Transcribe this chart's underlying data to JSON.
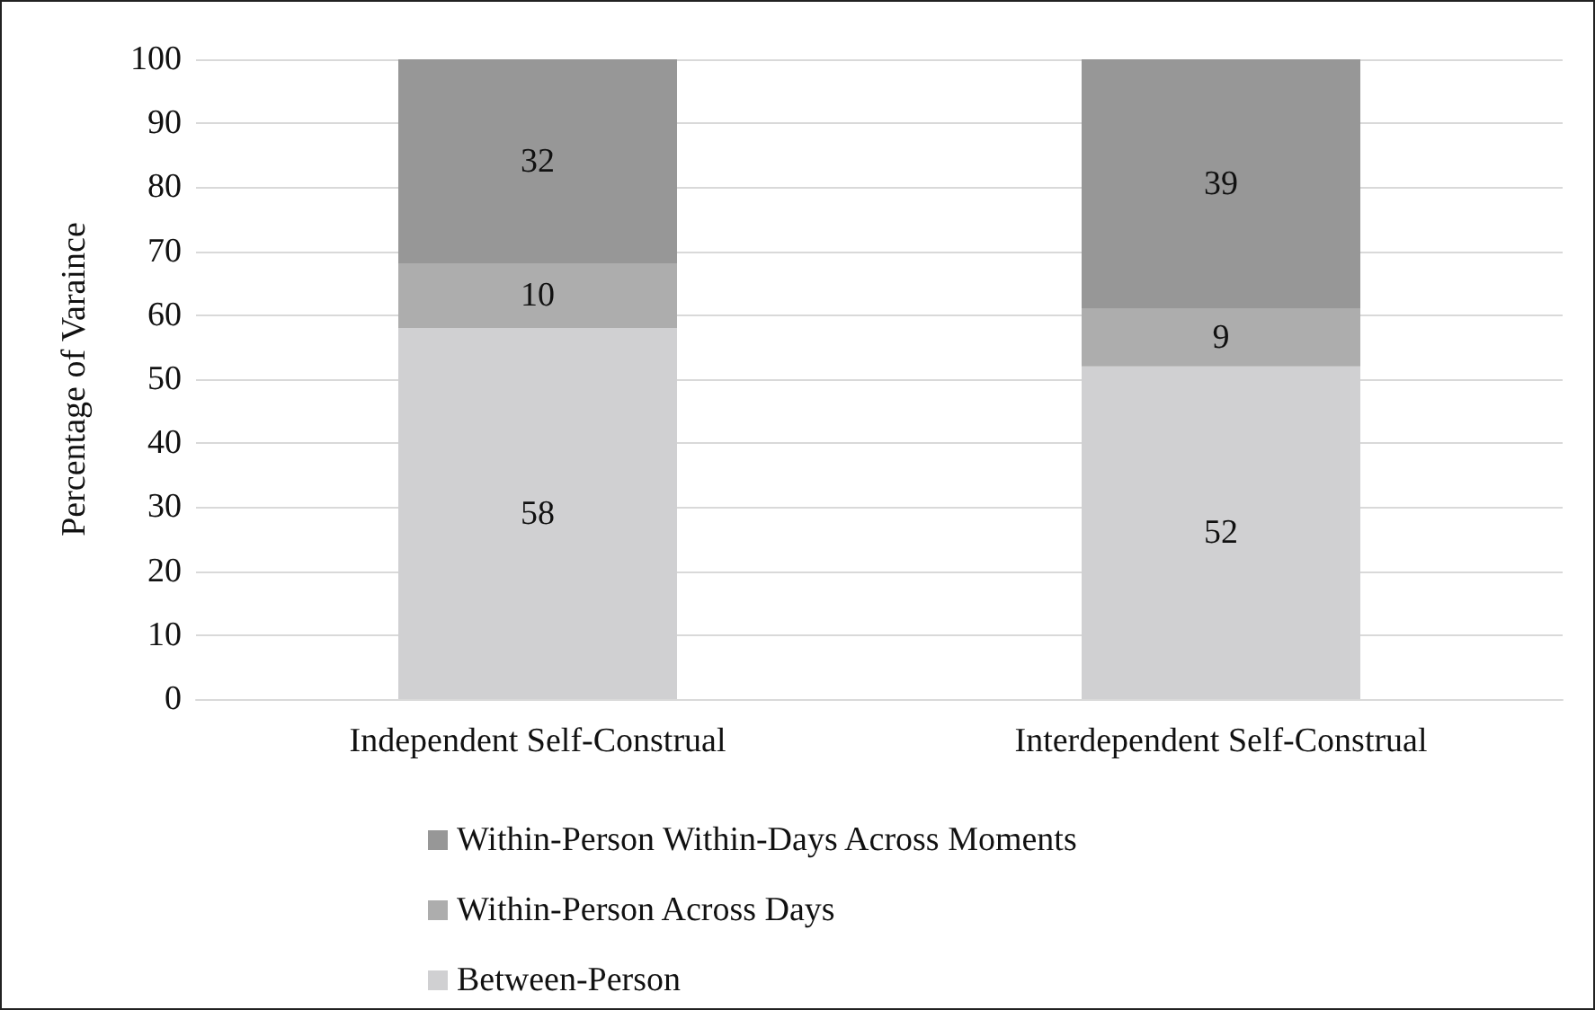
{
  "chart_data": {
    "type": "bar",
    "stacked": true,
    "ylabel": "Percentage of Varaince",
    "categories": [
      "Independent Self-Construal",
      "Interdependent Self-Construal"
    ],
    "series": [
      {
        "name": "Between-Person",
        "color": "#d0d0d2",
        "values": [
          58,
          52
        ]
      },
      {
        "name": "Within-Person Across Days",
        "color": "#adadad",
        "values": [
          10,
          9
        ]
      },
      {
        "name": "Within-Person Within-Days Across Moments",
        "color": "#979797",
        "values": [
          32,
          39
        ]
      }
    ],
    "ylim": [
      0,
      100
    ],
    "yticks": [
      0,
      10,
      20,
      30,
      40,
      50,
      60,
      70,
      80,
      90,
      100
    ],
    "grid": "y",
    "legend": "bottom",
    "data_labels": true
  }
}
